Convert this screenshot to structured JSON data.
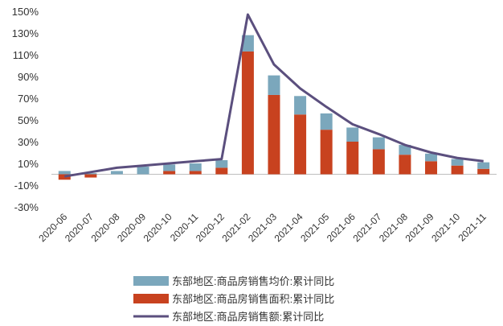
{
  "chart_data": {
    "type": "bar",
    "categories": [
      "2020-06",
      "2020-07",
      "2020-08",
      "2020-09",
      "2020-10",
      "2020-11",
      "2020-12",
      "2021-02",
      "2021-03",
      "2021-04",
      "2021-05",
      "2021-06",
      "2021-07",
      "2021-08",
      "2021-09",
      "2021-10",
      "2021-11"
    ],
    "ylim": [
      -30,
      150
    ],
    "yticks": [
      "150%",
      "130%",
      "110%",
      "90%",
      "70%",
      "50%",
      "30%",
      "10%",
      "-10%",
      "-30%"
    ],
    "ytick_values": [
      150,
      130,
      110,
      90,
      70,
      50,
      30,
      10,
      -10,
      -30
    ],
    "stacked": true,
    "series": [
      {
        "name": "东部地区:商品房销售均价:累计同比",
        "kind": "bar",
        "color": "#7BA7BC",
        "values": [
          3,
          1,
          3,
          7,
          6,
          7,
          7,
          15,
          18,
          17,
          15,
          13,
          11,
          9,
          7,
          6,
          6
        ]
      },
      {
        "name": "东部地区:商品房销售面积:累计同比",
        "kind": "bar",
        "color": "#C8421F",
        "values": [
          -5,
          -3,
          0,
          0,
          3,
          3,
          6,
          113,
          73,
          55,
          41,
          30,
          23,
          18,
          12,
          8,
          5
        ]
      },
      {
        "name": "东部地区:商品房销售额:累计同比",
        "kind": "line",
        "color": "#5B4F7E",
        "values": [
          -2,
          2,
          6,
          8,
          10,
          12,
          14,
          147,
          101,
          79,
          62,
          46,
          37,
          27,
          20,
          15,
          12
        ]
      }
    ],
    "legend_position": "bottom-center",
    "grid": false
  }
}
